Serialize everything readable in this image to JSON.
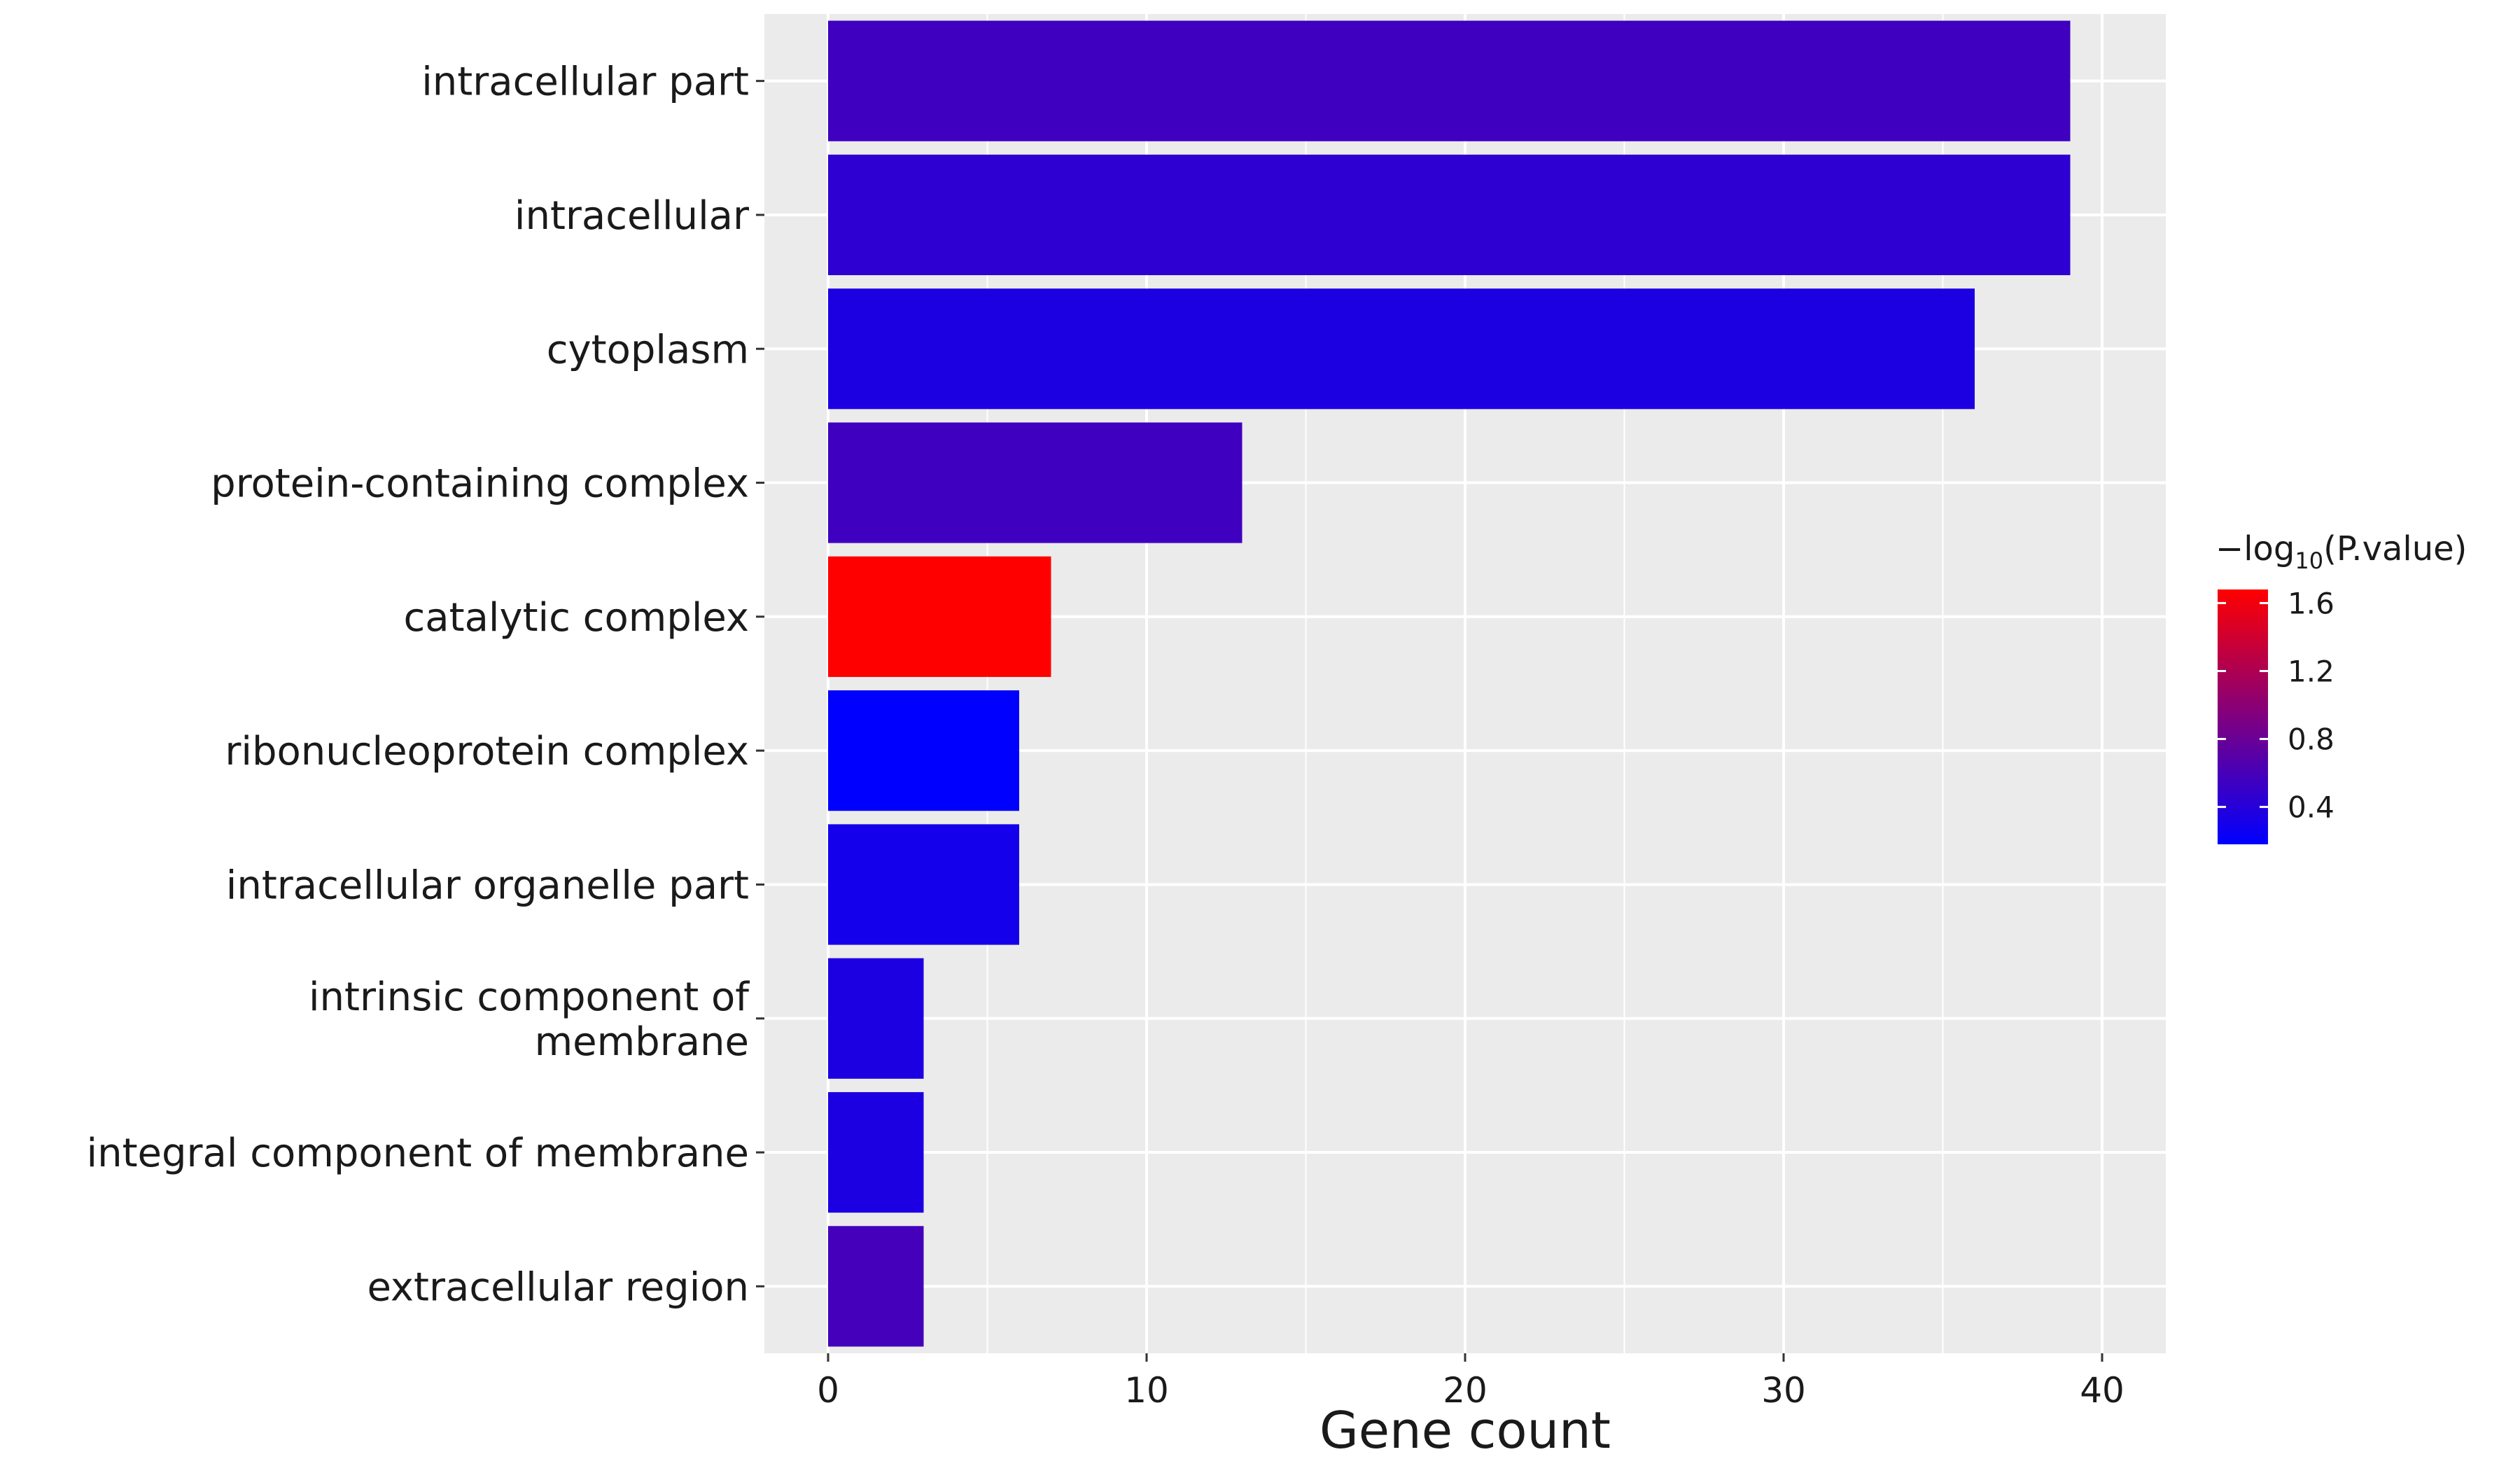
{
  "chart_data": {
    "type": "bar",
    "orientation": "horizontal",
    "title": "",
    "xlabel": "Gene count",
    "ylabel": "",
    "xlim": [
      -2,
      42
    ],
    "x_ticks": [
      0,
      10,
      20,
      30,
      40
    ],
    "grid": true,
    "categories": [
      "intracellular part",
      "intracellular",
      "cytoplasm",
      "protein-containing complex",
      "catalytic complex",
      "ribonucleoprotein complex",
      "intracellular organelle part",
      "intrinsic component of\nmembrane",
      "integral component of membrane",
      "extracellular region"
    ],
    "values": [
      39,
      39,
      36,
      13,
      7,
      6,
      6,
      3,
      3,
      3
    ],
    "neg_log10_pvalue": [
      0.55,
      0.45,
      0.35,
      0.55,
      1.68,
      0.18,
      0.3,
      0.35,
      0.35,
      0.58
    ],
    "legend": {
      "title_prefix": "−log",
      "title_sub": "10",
      "title_suffix": "(P.value)",
      "position": "right",
      "min": 0.18,
      "max": 1.68,
      "ticks": [
        "0.4",
        "0.8",
        "1.2",
        "1.6"
      ],
      "tick_values": [
        0.4,
        0.8,
        1.2,
        1.6
      ],
      "low_color": "#0000ff",
      "high_color": "#ff0000"
    },
    "colors": {
      "panel_bg": "#ebebeb",
      "grid": "#ffffff",
      "axis_tick": "#333333"
    }
  }
}
